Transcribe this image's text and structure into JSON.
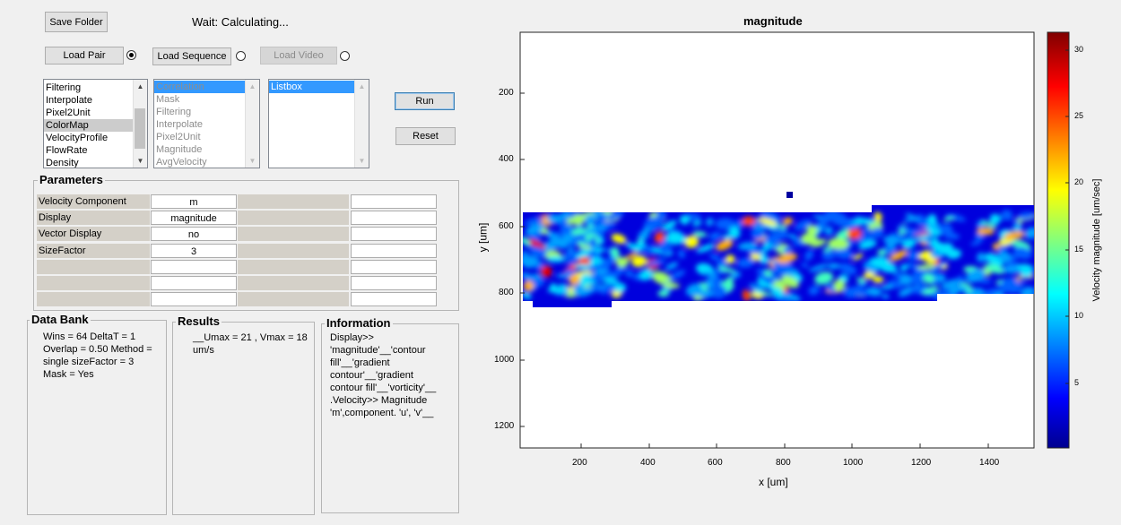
{
  "toolbar": {
    "save_folder": "Save Folder",
    "status": "Wait: Calculating...",
    "load_pair": "Load Pair",
    "load_sequence": "Load Sequence",
    "load_video": "Load Video"
  },
  "lists": {
    "operations": [
      "Filtering",
      "Interpolate",
      "Pixel2Unit",
      "ColorMap",
      "VelocityProfile",
      "FlowRate",
      "Density"
    ],
    "operations_selected": "ColorMap",
    "queue": [
      "Correlation",
      "Mask",
      "Filtering",
      "Interpolate",
      "Pixel2Unit",
      "Magnitude",
      "AvgVelocity"
    ],
    "queue_selected": "Correlation",
    "listbox": [
      "Listbox"
    ]
  },
  "actions": {
    "run": "Run",
    "reset": "Reset"
  },
  "parameters": {
    "title": "Parameters",
    "rows": [
      {
        "label": "Velocity Component",
        "value": "m",
        "value2": ""
      },
      {
        "label": "Display",
        "value": "magnitude",
        "value2": ""
      },
      {
        "label": "Vector Display",
        "value": "no",
        "value2": ""
      },
      {
        "label": "SizeFactor",
        "value": "3",
        "value2": ""
      },
      {
        "label": "",
        "value": "",
        "value2": ""
      },
      {
        "label": "",
        "value": "",
        "value2": ""
      },
      {
        "label": "",
        "value": "",
        "value2": ""
      }
    ]
  },
  "databank": {
    "title": "Data Bank",
    "lines": [
      "Wins = 64  DeltaT = 1",
      "Overlap = 0.50  Method =",
      "single  sizeFactor = 3",
      "Mask = Yes"
    ]
  },
  "results": {
    "title": "Results",
    "lines": [
      "__Umax = 21 , Vmax = 18",
      "um/s"
    ]
  },
  "information": {
    "title": "Information",
    "lines": [
      "Display>>",
      "'magnitude'__'contour",
      "fill'__'gradient",
      "contour'__'gradient",
      "contour fill'__'vorticity'__",
      ".Velocity>> Magnitude",
      "'m',component. 'u', 'v'__"
    ]
  },
  "plot": {
    "title": "magnitude",
    "xlabel": "x [um]",
    "ylabel": "y [um]",
    "xticks": [
      "200",
      "400",
      "600",
      "800",
      "1000",
      "1200",
      "1400"
    ],
    "yticks": [
      "200",
      "400",
      "600",
      "800",
      "1000",
      "1200"
    ],
    "colorbar_label": "Velocity magnitude [um/sec]",
    "colorbar_ticks": [
      "30",
      "25",
      "20",
      "15",
      "10",
      "5"
    ],
    "colors": {
      "dark_blue": "#00008f",
      "blue": "#0040ff",
      "cyan": "#00ffff",
      "yellow": "#ffff00",
      "red": "#ff0000",
      "dark_red": "#800000"
    }
  }
}
